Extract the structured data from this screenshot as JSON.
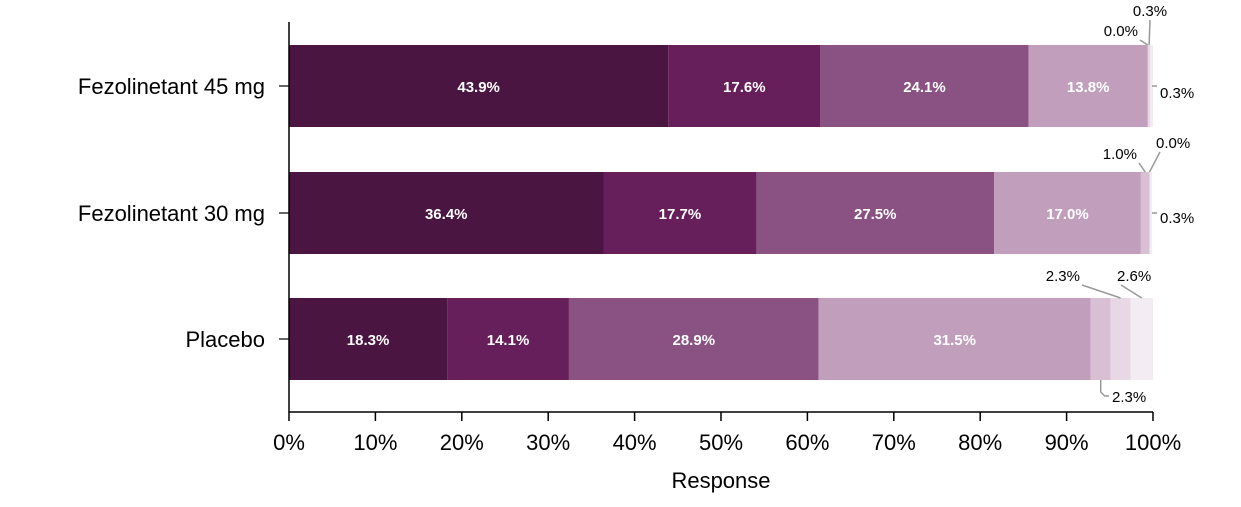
{
  "chart_data": {
    "type": "bar",
    "orientation": "horizontal",
    "stacked": true,
    "xlabel": "Response",
    "ylabel": "",
    "xlim": [
      0,
      100
    ],
    "x_ticks": [
      "0%",
      "10%",
      "20%",
      "30%",
      "40%",
      "50%",
      "60%",
      "70%",
      "80%",
      "90%",
      "100%"
    ],
    "grid": false,
    "legend": "none",
    "categories": [
      "Fezolinetant 45 mg",
      "Fezolinetant 30 mg",
      "Placebo"
    ],
    "segment_colors": [
      "#4a1540",
      "#661f5a",
      "#8a5282",
      "#c19fbc",
      "#d8bfd4",
      "#e8d8e6",
      "#f4ecf3"
    ],
    "rows": [
      {
        "category": "Fezolinetant 45 mg",
        "values": [
          43.9,
          17.6,
          24.1,
          13.8,
          0.0,
          0.3,
          0.3
        ],
        "labels": [
          "43.9%",
          "17.6%",
          "24.1%",
          "13.8%",
          "0.0%",
          "0.3%",
          "0.3%"
        ]
      },
      {
        "category": "Fezolinetant 30 mg",
        "values": [
          36.4,
          17.7,
          27.5,
          17.0,
          1.0,
          0.0,
          0.3
        ],
        "labels": [
          "36.4%",
          "17.7%",
          "27.5%",
          "17.0%",
          "1.0%",
          "0.0%",
          "0.3%"
        ]
      },
      {
        "category": "Placebo",
        "values": [
          18.3,
          14.1,
          28.9,
          31.5,
          2.3,
          2.3,
          2.6
        ],
        "labels": [
          "18.3%",
          "14.1%",
          "28.9%",
          "31.5%",
          "2.3%",
          "2.3%",
          "2.6%"
        ]
      }
    ]
  }
}
